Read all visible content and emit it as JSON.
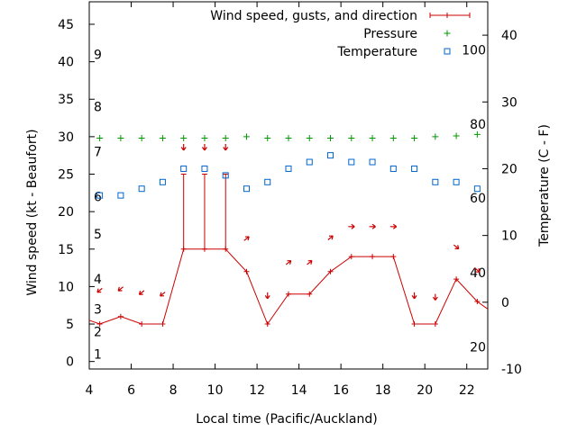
{
  "chart_data": {
    "type": "line",
    "xlabel": "Local time (Pacific/Auckland)",
    "ylabel_left": "Wind speed (kt - Beaufort)",
    "ylabel_right": "Temperature (C - F)",
    "xlim": [
      4,
      23
    ],
    "ylim_left": [
      -1,
      48
    ],
    "ylim_right": [
      -10,
      45
    ],
    "x_ticks": [
      4,
      6,
      8,
      10,
      12,
      14,
      16,
      18,
      20,
      22
    ],
    "y_left_ticks": [
      0,
      5,
      10,
      15,
      20,
      25,
      30,
      35,
      40,
      45
    ],
    "y_right_ticks": [
      -10,
      0,
      10,
      20,
      30,
      40
    ],
    "beaufort_labels": [
      {
        "label": "1",
        "y": 1
      },
      {
        "label": "2",
        "y": 4
      },
      {
        "label": "3",
        "y": 7
      },
      {
        "label": "4",
        "y": 11
      },
      {
        "label": "5",
        "y": 17
      },
      {
        "label": "6",
        "y": 22
      },
      {
        "label": "7",
        "y": 28
      },
      {
        "label": "8",
        "y": 34
      },
      {
        "label": "9",
        "y": 41
      }
    ],
    "fahrenheit_labels": [
      {
        "label": "20",
        "t": -6.7
      },
      {
        "label": "40",
        "t": 4.4
      },
      {
        "label": "60",
        "t": 15.6
      },
      {
        "label": "80",
        "t": 26.7
      },
      {
        "label": "100",
        "t": 37.8
      }
    ],
    "legend": [
      {
        "name": "Wind speed, gusts, and direction",
        "color": "#cc0000",
        "style": "line"
      },
      {
        "name": "Pressure",
        "color": "#009900",
        "style": "plus"
      },
      {
        "name": "Temperature",
        "color": "#0066cc",
        "style": "square"
      }
    ],
    "legend_position": "top-right",
    "wind": {
      "x": [
        3.5,
        4.5,
        5.5,
        6.5,
        7.5,
        8.5,
        9.5,
        10.5,
        11.5,
        12.5,
        13.5,
        14.5,
        15.5,
        16.5,
        17.5,
        18.5,
        19.5,
        20.5,
        21.5,
        22.5,
        23.5
      ],
      "speed": [
        6,
        5,
        6,
        5,
        5,
        15,
        15,
        15,
        12,
        5,
        9,
        9,
        12,
        14,
        14,
        14,
        5,
        5,
        11,
        8,
        6
      ],
      "gust": [
        null,
        null,
        null,
        null,
        null,
        25,
        25,
        25,
        null,
        null,
        null,
        null,
        null,
        null,
        null,
        null,
        null,
        null,
        null,
        null,
        null
      ],
      "arrow_y": [
        null,
        9.5,
        9.7,
        9.2,
        9.0,
        28.6,
        28.6,
        28.6,
        16.4,
        8.8,
        13.2,
        13.2,
        16.5,
        18.0,
        18.0,
        18.0,
        8.8,
        8.6,
        15.3,
        12.2,
        null
      ],
      "arrow_dir": [
        null,
        "sw",
        "sw",
        "sw",
        "sw",
        "s",
        "s",
        "s",
        "ne",
        "s",
        "ne",
        "ne",
        "ne",
        "e",
        "e",
        "e",
        "s",
        "s",
        "se",
        "se",
        null
      ]
    },
    "pressure": {
      "x": [
        4.5,
        5.5,
        6.5,
        7.5,
        8.5,
        9.5,
        10.5,
        11.5,
        12.5,
        13.5,
        14.5,
        15.5,
        16.5,
        17.5,
        18.5,
        19.5,
        20.5,
        21.5,
        22.5
      ],
      "values": [
        29.8,
        29.8,
        29.8,
        29.8,
        29.8,
        29.8,
        29.8,
        30.0,
        29.8,
        29.8,
        29.8,
        29.8,
        29.8,
        29.8,
        29.8,
        29.8,
        30.0,
        30.1,
        30.3
      ]
    },
    "temperature": {
      "x": [
        4.5,
        5.5,
        6.5,
        7.5,
        8.5,
        9.5,
        10.5,
        11.5,
        12.5,
        13.5,
        14.5,
        15.5,
        16.5,
        17.5,
        18.5,
        19.5,
        20.5,
        21.5,
        22.5
      ],
      "values": [
        16,
        16,
        17,
        18,
        20,
        20,
        19,
        17,
        18,
        20,
        21,
        22,
        21,
        21,
        20,
        20,
        18,
        18,
        17
      ]
    }
  }
}
